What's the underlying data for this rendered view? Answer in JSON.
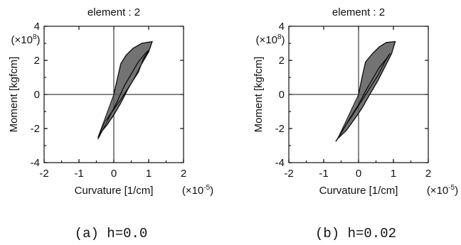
{
  "chart_data": [
    {
      "type": "line",
      "title": "element : 2",
      "xlabel": "Curvature [1/cm]",
      "ylabel": "Moment [kgfcm]",
      "x_multiplier": "(×10-5)",
      "y_multiplier": "(×108)",
      "xlim": [
        -2,
        2
      ],
      "ylim": [
        -4,
        4
      ],
      "x_ticks": [
        "-2",
        "-1",
        "0",
        "1",
        "2"
      ],
      "y_ticks": [
        "4",
        "2",
        "0",
        "-2",
        "-4"
      ],
      "grid": false,
      "caption": "(a) h=0.0",
      "series": [
        {
          "values": [
            [
              0,
              0
            ],
            [
              0.1,
              0.9
            ],
            [
              0.2,
              1.8
            ],
            [
              0.35,
              2.3
            ],
            [
              0.55,
              2.7
            ],
            [
              0.8,
              3.0
            ],
            [
              1.1,
              3.1
            ],
            [
              1.0,
              2.5
            ],
            [
              0.8,
              1.8
            ],
            [
              0.6,
              1.0
            ],
            [
              0.4,
              0.3
            ],
            [
              0.2,
              -0.5
            ],
            [
              0,
              -1.2
            ],
            [
              -0.2,
              -1.8
            ],
            [
              -0.4,
              -2.3
            ],
            [
              -0.45,
              -2.6
            ],
            [
              -0.3,
              -2.0
            ],
            [
              -0.1,
              -1.2
            ],
            [
              0.1,
              -0.4
            ],
            [
              0.3,
              0.5
            ],
            [
              0.5,
              1.2
            ],
            [
              0.7,
              1.9
            ],
            [
              0.9,
              2.4
            ],
            [
              1.0,
              2.6
            ],
            [
              0.85,
              2.1
            ],
            [
              0.7,
              1.3
            ],
            [
              0.45,
              0.5
            ],
            [
              0.2,
              -0.3
            ],
            [
              -0.05,
              -1.0
            ],
            [
              -0.25,
              -1.6
            ],
            [
              -0.45,
              -2.5
            ]
          ],
          "fill": "#5a5a5a"
        }
      ]
    },
    {
      "type": "line",
      "title": "element : 2",
      "xlabel": "Curvature [1/cm]",
      "ylabel": "Moment [kgfcm]",
      "x_multiplier": "(×10-5)",
      "y_multiplier": "(×108)",
      "xlim": [
        -2,
        2
      ],
      "ylim": [
        -4,
        4
      ],
      "x_ticks": [
        "-2",
        "-1",
        "0",
        "1",
        "2"
      ],
      "y_ticks": [
        "4",
        "2",
        "0",
        "-2",
        "-4"
      ],
      "grid": false,
      "caption": "(b) h=0.02",
      "series": [
        {
          "values": [
            [
              0,
              0
            ],
            [
              0.1,
              1.0
            ],
            [
              0.2,
              1.9
            ],
            [
              0.4,
              2.4
            ],
            [
              0.6,
              2.8
            ],
            [
              0.8,
              3.05
            ],
            [
              1.05,
              3.1
            ],
            [
              0.95,
              2.4
            ],
            [
              0.75,
              1.6
            ],
            [
              0.55,
              0.8
            ],
            [
              0.35,
              0.1
            ],
            [
              0.1,
              -0.8
            ],
            [
              -0.1,
              -1.4
            ],
            [
              -0.35,
              -2.1
            ],
            [
              -0.6,
              -2.6
            ],
            [
              -0.65,
              -2.75
            ],
            [
              -0.45,
              -2.1
            ],
            [
              -0.25,
              -1.4
            ],
            [
              0,
              -0.6
            ],
            [
              0.2,
              0.2
            ],
            [
              0.4,
              0.9
            ],
            [
              0.6,
              1.6
            ],
            [
              0.8,
              2.1
            ],
            [
              0.9,
              2.4
            ],
            [
              0.75,
              1.9
            ],
            [
              0.55,
              1.1
            ],
            [
              0.3,
              0.3
            ],
            [
              0.05,
              -0.5
            ],
            [
              -0.2,
              -1.3
            ],
            [
              -0.4,
              -1.9
            ],
            [
              -0.6,
              -2.6
            ]
          ],
          "fill": "#5a5a5a"
        }
      ]
    }
  ]
}
